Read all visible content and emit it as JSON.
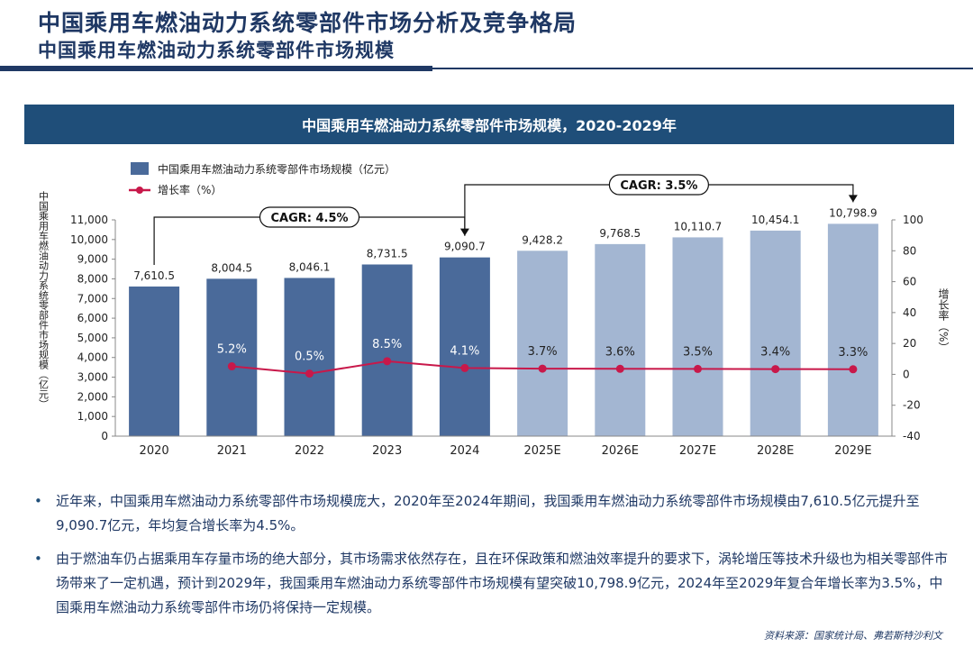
{
  "header": {
    "title": "中国乘用车燃油动力系统零部件市场分析及竞争格局",
    "subtitle": "中国乘用车燃油动力系统零部件市场规模"
  },
  "chart_banner": "中国乘用车燃油动力系统零部件市场规模，2020-2029年",
  "chart_data": {
    "type": "bar",
    "title": "中国乘用车燃油动力系统零部件市场规模，2020-2029年",
    "categories": [
      "2020",
      "2021",
      "2022",
      "2023",
      "2024",
      "2025E",
      "2026E",
      "2027E",
      "2028E",
      "2029E"
    ],
    "series": [
      {
        "name": "中国乘用车燃油动力系统零部件市场规模（亿元）",
        "type": "bar",
        "axis": "left",
        "values": [
          7610.5,
          8004.5,
          8046.1,
          8731.5,
          9090.7,
          9428.2,
          9768.5,
          10110.7,
          10454.1,
          10798.9
        ],
        "labels": [
          "7,610.5",
          "8,004.5",
          "8,046.1",
          "8,731.5",
          "9,090.7",
          "9,428.2",
          "9,768.5",
          "10,110.7",
          "10,454.1",
          "10,798.9"
        ]
      },
      {
        "name": "增长率（%）",
        "type": "line",
        "axis": "right",
        "values": [
          null,
          5.2,
          0.5,
          8.5,
          4.1,
          3.7,
          3.6,
          3.5,
          3.4,
          3.3
        ],
        "labels": [
          "",
          "5.2%",
          "0.5%",
          "8.5%",
          "4.1%",
          "3.7%",
          "3.6%",
          "3.5%",
          "3.4%",
          "3.3%"
        ]
      }
    ],
    "ylabel_left": "中国乘用车燃油动力系统零部件市场规模（亿元）",
    "ylabel_right": "增长率（%）",
    "ylim_left": [
      0,
      11000
    ],
    "yticks_left": [
      "0",
      "1,000",
      "2,000",
      "3,000",
      "4,000",
      "5,000",
      "6,000",
      "7,000",
      "8,000",
      "9,000",
      "10,000",
      "11,000"
    ],
    "ylim_right": [
      -40,
      100
    ],
    "yticks_right": [
      "-40",
      "-20",
      "0",
      "20",
      "40",
      "60",
      "80",
      "100"
    ],
    "legend_position": "top-left",
    "annotations": [
      {
        "text": "CAGR: 4.5%",
        "from": "2020",
        "to": "2024"
      },
      {
        "text": "CAGR: 3.5%",
        "from": "2024",
        "to": "2029E"
      }
    ],
    "grid": false
  },
  "colors": {
    "bar_actual": "#4a6a9a",
    "bar_forecast": "#a3b6d2",
    "line": "#c8184a",
    "banner": "#1f4e79",
    "text": "#1f3864"
  },
  "bullets": [
    "近年来，中国乘用车燃油动力系统零部件市场规模庞大，2020年至2024年期间，我国乘用车燃油动力系统零部件市场规模由7,610.5亿元提升至9,090.7亿元，年均复合增长率为4.5%。",
    "由于燃油车仍占据乘用车存量市场的绝大部分，其市场需求依然存在，且在环保政策和燃油效率提升的要求下，涡轮增压等技术升级也为相关零部件市场带来了一定机遇，预计到2029年，我国乘用车燃油动力系统零部件市场规模有望突破10,798.9亿元，2024年至2029年复合年增长率为3.5%，中国乘用车燃油动力系统零部件市场仍将保持一定规模。"
  ],
  "source": "资料来源：国家统计局、弗若斯特沙利文"
}
